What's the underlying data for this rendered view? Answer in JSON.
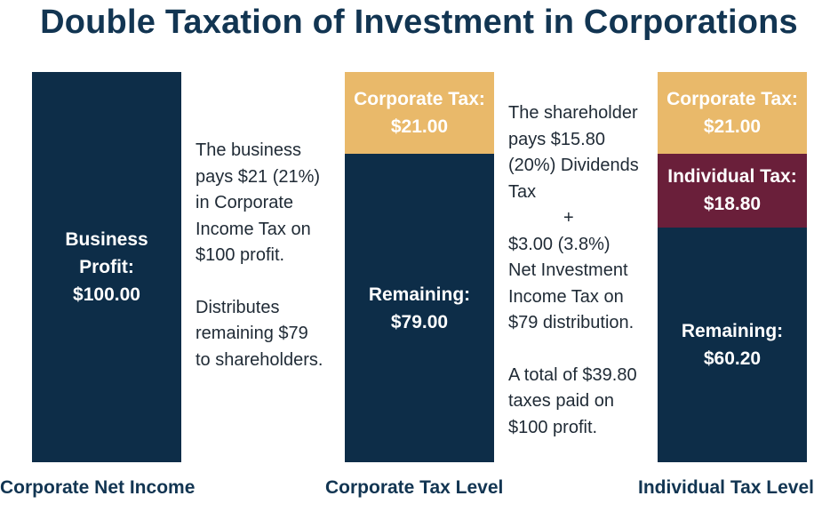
{
  "title": "Double Taxation of Investment in Corporations",
  "chart_data": {
    "type": "bar",
    "stacked": true,
    "categories": [
      "Corporate Net Income",
      "Corporate Tax Level",
      "Individual Tax Level"
    ],
    "series": [
      {
        "name": "Business Profit",
        "values": [
          100.0,
          0,
          0
        ],
        "color": "#0d2d48"
      },
      {
        "name": "Remaining",
        "values": [
          0,
          79.0,
          60.2
        ],
        "color": "#0d2d48"
      },
      {
        "name": "Individual Tax",
        "values": [
          0,
          0,
          18.8
        ],
        "color": "#6a1f3a"
      },
      {
        "name": "Corporate Tax",
        "values": [
          0,
          21.0,
          21.0
        ],
        "color": "#e9b96a"
      }
    ],
    "ylim": [
      0,
      100
    ],
    "legend": "none",
    "grid": false
  },
  "bars": {
    "b1": {
      "seg1_line1": "Business",
      "seg1_line2": "Profit:",
      "seg1_value": "$100.00"
    },
    "b2": {
      "corp_tax_label": "Corporate Tax:",
      "corp_tax_value": "$21.00",
      "remaining_label": "Remaining:",
      "remaining_value": "$79.00"
    },
    "b3": {
      "corp_tax_label": "Corporate Tax:",
      "corp_tax_value": "$21.00",
      "indiv_tax_label": "Individual Tax:",
      "indiv_tax_value": "$18.80",
      "remaining_label": "Remaining:",
      "remaining_value": "$60.20"
    }
  },
  "annotations": {
    "note1": [
      "The business",
      "pays $21 (21%)",
      "in Corporate",
      "Income Tax on",
      "$100 profit.",
      "",
      "Distributes",
      "remaining $79",
      "to shareholders."
    ],
    "note2": [
      "The shareholder",
      "pays $15.80",
      "(20%) Dividends",
      "Tax",
      "+",
      "$3.00 (3.8%)",
      "Net Investment",
      "Income Tax on",
      "$79 distribution.",
      "",
      "A total of $39.80",
      "taxes paid on",
      "$100 profit."
    ]
  },
  "axis_labels": [
    "Corporate Net Income",
    "Corporate Tax Level",
    "Individual Tax Level"
  ]
}
